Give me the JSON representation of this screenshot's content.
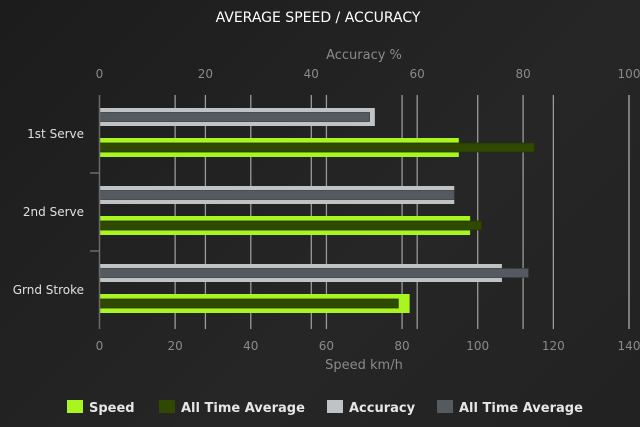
{
  "chart_data": {
    "type": "bar",
    "orientation": "horizontal",
    "title": "AVERAGE SPEED / ACCURACY",
    "categories": [
      "1st Serve",
      "2nd Serve",
      "Grnd Stroke"
    ],
    "x_bottom": {
      "label": "Speed km/h",
      "range": [
        0,
        140
      ],
      "ticks": [
        0,
        20,
        40,
        60,
        80,
        100,
        120,
        140
      ]
    },
    "x_top": {
      "label": "Accuracy %",
      "range": [
        0,
        100
      ],
      "ticks": [
        0,
        20,
        40,
        60,
        80,
        100
      ]
    },
    "grid": true,
    "legend_position": "bottom",
    "series": [
      {
        "name": "Speed",
        "axis": "bottom",
        "color": "#a8f520",
        "values": [
          95,
          98,
          82
        ]
      },
      {
        "name": "All Time Average",
        "axis": "bottom",
        "color": "#2f4a00",
        "values": [
          115,
          101,
          79
        ]
      },
      {
        "name": "Accuracy",
        "axis": "top",
        "color": "#bfc3c6",
        "values": [
          52,
          67,
          76
        ]
      },
      {
        "name": "All Time Average",
        "axis": "top",
        "color": "#555a60",
        "values": [
          51,
          67,
          81
        ]
      }
    ]
  }
}
